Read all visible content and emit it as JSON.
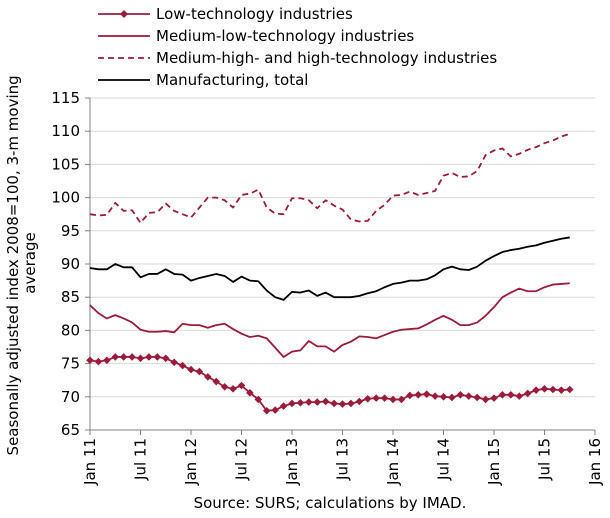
{
  "chart_data": {
    "type": "line",
    "title": "",
    "ylabel": "Seasonally adjusted index 2008=100, 3-m moving average",
    "xlabel": "",
    "ylim": [
      65,
      115
    ],
    "yticks": [
      65,
      70,
      75,
      80,
      85,
      90,
      95,
      100,
      105,
      110,
      115
    ],
    "xticks": [
      "Jan 11",
      "Jul 11",
      "Jan 12",
      "Jul 12",
      "Jan 13",
      "Jul 13",
      "Jan 14",
      "Jul 14",
      "Jan 15",
      "Jul 15",
      "Jan 16"
    ],
    "x_start": "Jan 11",
    "months": 60,
    "grid": {
      "horizontal": true,
      "vertical": false
    },
    "legend_position": "top-left",
    "source": "Source: SURS; calculations by IMAD.",
    "series": [
      {
        "name": "Low-technology industries",
        "color": "#9b1c3a",
        "style": "solid-diamond",
        "values": [
          75.5,
          75.3,
          75.5,
          76.0,
          76.0,
          76.0,
          75.8,
          76.0,
          76.0,
          75.8,
          75.2,
          74.7,
          74.1,
          73.8,
          73.0,
          72.3,
          71.5,
          71.2,
          71.7,
          70.6,
          69.6,
          67.9,
          68.0,
          68.6,
          69.0,
          69.1,
          69.2,
          69.2,
          69.3,
          69.0,
          68.9,
          69.0,
          69.3,
          69.7,
          69.8,
          69.8,
          69.6,
          69.6,
          70.2,
          70.3,
          70.4,
          70.1,
          70.0,
          69.9,
          70.3,
          70.1,
          69.9,
          69.6,
          69.8,
          70.3,
          70.3,
          70.1,
          70.5,
          71.0,
          71.2,
          71.1,
          71.0,
          71.1
        ]
      },
      {
        "name": "Medium-low-technology industries",
        "color": "#9b1c3a",
        "style": "solid",
        "values": [
          83.8,
          82.6,
          81.8,
          82.3,
          81.8,
          81.2,
          80.1,
          79.8,
          79.8,
          79.9,
          79.7,
          81.0,
          80.8,
          80.8,
          80.4,
          80.8,
          81.0,
          80.2,
          79.5,
          79.0,
          79.2,
          78.8,
          77.4,
          76.0,
          76.8,
          77.0,
          78.4,
          77.6,
          77.6,
          76.8,
          77.8,
          78.3,
          79.1,
          79.0,
          78.8,
          79.3,
          79.8,
          80.1,
          80.2,
          80.3,
          80.9,
          81.6,
          82.2,
          81.6,
          80.8,
          80.8,
          81.2,
          82.2,
          83.5,
          85.0,
          85.7,
          86.3,
          85.9,
          85.9,
          86.5,
          86.9,
          87.0,
          87.1
        ]
      },
      {
        "name": "Medium-high- and high-technology industries",
        "color": "#9b1c3a",
        "style": "dashed",
        "values": [
          97.5,
          97.3,
          97.4,
          99.2,
          98.0,
          98.1,
          96.2,
          97.7,
          97.8,
          99.1,
          98.0,
          97.5,
          97.0,
          98.5,
          100.0,
          100.0,
          99.6,
          98.5,
          100.4,
          100.6,
          101.2,
          98.5,
          97.6,
          97.5,
          99.9,
          99.9,
          99.6,
          98.4,
          99.6,
          98.8,
          98.2,
          96.7,
          96.4,
          96.5,
          98.0,
          98.9,
          100.3,
          100.4,
          100.9,
          100.4,
          100.7,
          101.0,
          103.3,
          103.7,
          103.1,
          103.2,
          104.0,
          106.4,
          107.1,
          107.4,
          106.2,
          106.6,
          107.2,
          107.6,
          108.2,
          108.6,
          109.2,
          109.6
        ]
      },
      {
        "name": "Manufacturing, total",
        "color": "#000000",
        "style": "solid",
        "values": [
          89.4,
          89.2,
          89.2,
          90.0,
          89.5,
          89.5,
          88.0,
          88.5,
          88.5,
          89.2,
          88.5,
          88.4,
          87.5,
          87.9,
          88.2,
          88.5,
          88.2,
          87.3,
          88.1,
          87.5,
          87.4,
          86.0,
          85.0,
          84.6,
          85.8,
          85.7,
          86.0,
          85.2,
          85.7,
          85.0,
          85.0,
          85.0,
          85.2,
          85.6,
          85.9,
          86.5,
          87.0,
          87.2,
          87.5,
          87.5,
          87.7,
          88.3,
          89.2,
          89.6,
          89.2,
          89.1,
          89.6,
          90.5,
          91.2,
          91.8,
          92.1,
          92.3,
          92.6,
          92.8,
          93.2,
          93.5,
          93.8,
          94.0
        ]
      }
    ]
  }
}
